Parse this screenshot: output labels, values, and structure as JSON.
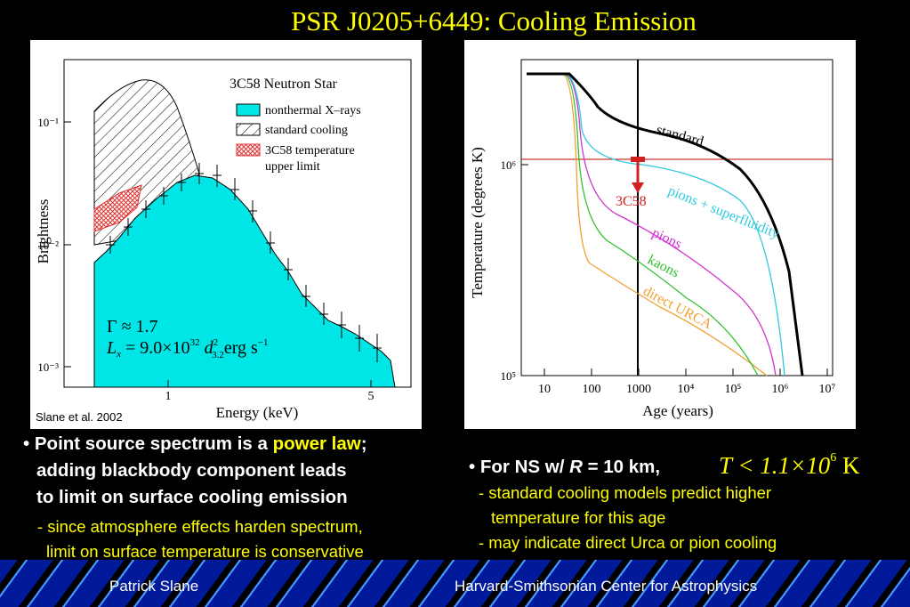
{
  "title": "PSR J0205+6449: Cooling Emission",
  "left_chart": {
    "legend_title": "3C58 Neutron Star",
    "legend_items": [
      "nonthermal X–rays",
      "standard cooling",
      "3C58 temperature",
      "upper limit"
    ],
    "y_label": "Brightness",
    "x_label": "Energy (keV)",
    "y_ticks": [
      "10⁻¹",
      "10⁻²",
      "10⁻³"
    ],
    "x_ticks": [
      "1",
      "5"
    ],
    "gamma_label": "Γ ≈ 1.7",
    "lum_label": "L",
    "lum_sub": "x",
    "lum_eq": " = 9.0×10",
    "lum_exp": "32",
    "lum_d": " d",
    "lum_d_exp": "2",
    "lum_d_sub": "3.2",
    "lum_unit": "erg s",
    "lum_unit_exp": "−1",
    "credit": "Slane et al. 2002",
    "colors": {
      "nonthermal": "#00e6e6",
      "limit": "#e03030"
    }
  },
  "right_chart": {
    "y_label": "Temperature (degrees K)",
    "x_label": "Age (years)",
    "x_ticks": [
      "10",
      "100",
      "1000",
      "10⁴",
      "10⁵",
      "10⁶",
      "10⁷"
    ],
    "y_ticks": [
      "10⁶",
      "10⁵"
    ],
    "curve_labels": [
      "standard",
      "pions + superfluidity",
      "pions",
      "kaons",
      "direct URCA",
      "3C58"
    ]
  },
  "bullets": {
    "left_main_prefix": "• Point source spectrum is a ",
    "left_main_highlight": "power law",
    "left_main_suffix": ";",
    "left_main_line2": "adding blackbody component leads",
    "left_main_line3": "to limit on surface cooling emission",
    "left_sub_line1": "- since atmosphere effects harden spectrum,",
    "left_sub_line2": "limit on surface temperature is conservative",
    "right_main_prefix": "• For NS w/ ",
    "right_main_var": "R",
    "right_main_suffix": " = 10 km,",
    "right_formula": "T < 1.1×10",
    "right_formula_exp": "6",
    "right_formula_unit": " K",
    "right_sub_line1": "- standard cooling models predict higher",
    "right_sub_line2": "temperature for this age",
    "right_sub_line3": "- may indicate direct Urca or pion cooling"
  },
  "footer": {
    "left": "Patrick Slane",
    "right": "Harvard-Smithsonian Center for Astrophysics"
  }
}
